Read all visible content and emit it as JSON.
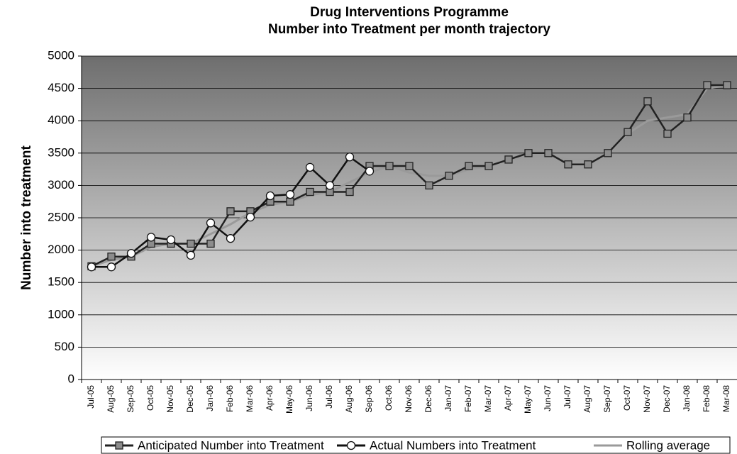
{
  "chart_data": {
    "type": "line",
    "title": "Drug Interventions Programme",
    "subtitle": "Number into Treatment per month trajectory",
    "y_label": "Number into treatment",
    "categories": [
      "Jul-05",
      "Aug-05",
      "Sep-05",
      "Oct-05",
      "Nov-05",
      "Dec-05",
      "Jan-06",
      "Feb-06",
      "Mar-06",
      "Apr-06",
      "May-06",
      "Jun-06",
      "Jul-06",
      "Aug-06",
      "Sep-06",
      "Oct-06",
      "Nov-06",
      "Dec-06",
      "Jan-07",
      "Feb-07",
      "Mar-07",
      "Apr-07",
      "May-07",
      "Jun-07",
      "Jul-07",
      "Aug-07",
      "Sep-07",
      "Oct-07",
      "Nov-07",
      "Dec-07",
      "Jan-08",
      "Feb-08",
      "Mar-08"
    ],
    "series": [
      {
        "name": "Anticipated Number into Treatment",
        "color": "#222222",
        "marker": "square",
        "marker_color": "#8c8c8c",
        "values": [
          1750,
          1900,
          1900,
          2100,
          2100,
          2100,
          2100,
          2600,
          2600,
          2750,
          2750,
          2900,
          2900,
          2900,
          3300,
          3300,
          3300,
          3000,
          3150,
          3300,
          3300,
          3400,
          3500,
          3500,
          3325,
          3325,
          3500,
          3825,
          4300,
          3800,
          4050,
          4550,
          4550
        ]
      },
      {
        "name": "Actual Numbers into Treatment",
        "color": "#111111",
        "marker": "circle",
        "marker_color": "#ffffff",
        "values": [
          1740,
          1740,
          1950,
          2200,
          2160,
          1920,
          2420,
          2180,
          2510,
          2840,
          2860,
          3280,
          3000,
          3440,
          3220,
          null,
          null,
          null,
          null,
          null,
          null,
          null,
          null,
          null,
          null,
          null,
          null,
          null,
          null,
          null,
          null,
          null,
          null
        ]
      },
      {
        "name": "Rolling average",
        "color": "#9a9a9a",
        "marker": "none",
        "values": [
          1750,
          1850,
          1900,
          2050,
          2100,
          2100,
          2250,
          2400,
          2580,
          2700,
          2750,
          2850,
          2900,
          3050,
          3200,
          3300,
          3200,
          3150,
          3150,
          3250,
          3300,
          3400,
          3450,
          3450,
          3400,
          3400,
          3500,
          3800,
          4000,
          4050,
          4100,
          4500,
          4550
        ]
      }
    ],
    "ylim": [
      0,
      5000
    ],
    "yticks": [
      0,
      500,
      1000,
      1500,
      2000,
      2500,
      3000,
      3500,
      4000,
      4500,
      5000
    ],
    "grid": true
  }
}
